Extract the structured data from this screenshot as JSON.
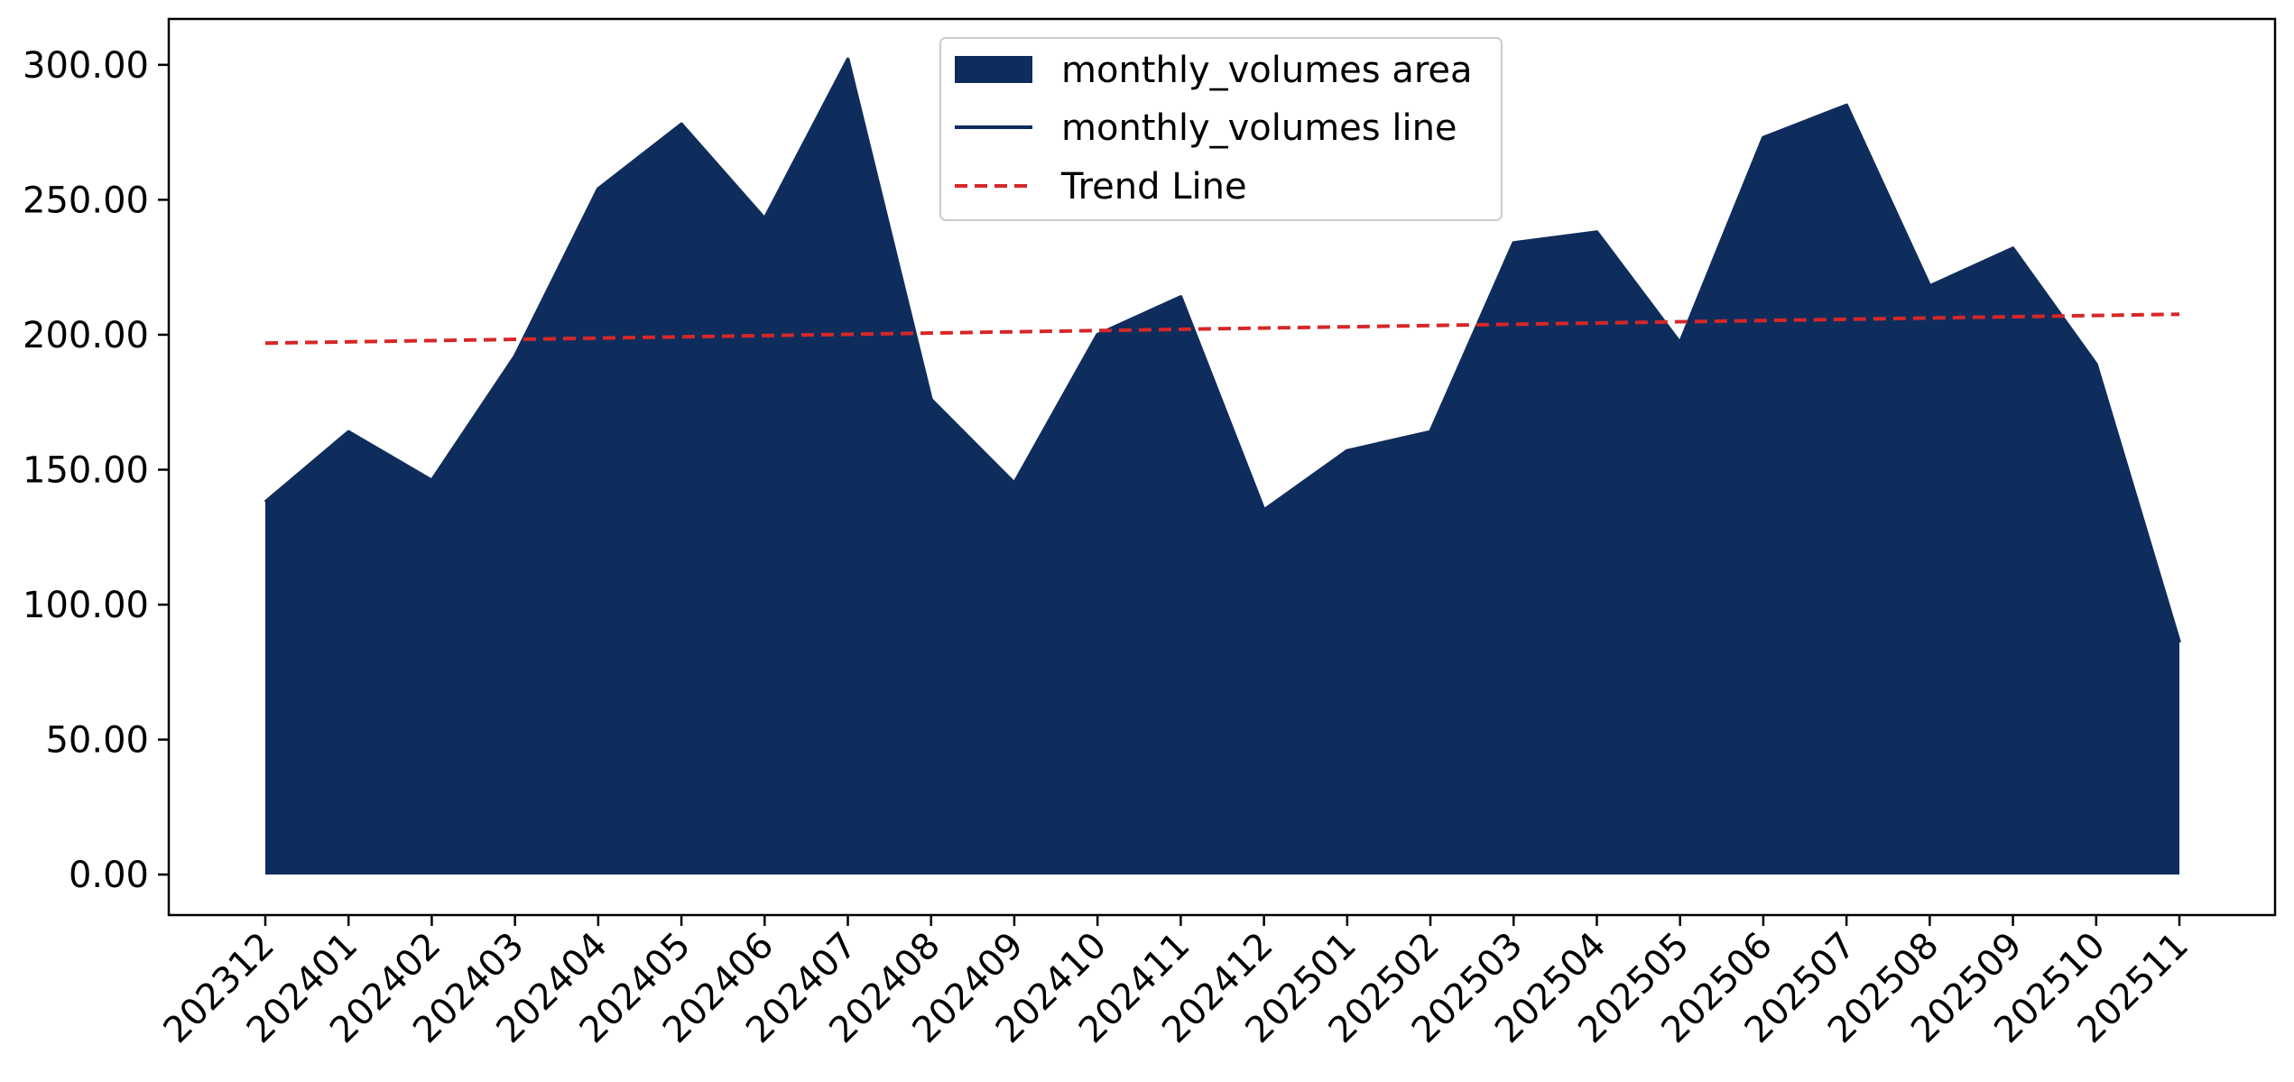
{
  "chart_data": {
    "type": "area",
    "title": "",
    "xlabel": "",
    "ylabel": "",
    "x": [
      "202312",
      "202401",
      "202402",
      "202403",
      "202404",
      "202405",
      "202406",
      "202407",
      "202408",
      "202409",
      "202410",
      "202411",
      "202412",
      "202501",
      "202502",
      "202503",
      "202504",
      "202505",
      "202506",
      "202507",
      "202508",
      "202509",
      "202510",
      "202511"
    ],
    "series": [
      {
        "name": "monthly_volumes area",
        "kind": "area",
        "color": "#0f2d5c",
        "values": [
          138,
          164,
          146,
          192,
          254,
          278,
          243,
          302,
          176,
          145,
          200,
          214,
          135,
          157,
          164,
          234,
          238,
          197,
          273,
          285,
          218,
          232,
          189,
          86
        ]
      },
      {
        "name": "monthly_volumes line",
        "kind": "line",
        "color": "#0f2d5c",
        "values": [
          138,
          164,
          146,
          192,
          254,
          278,
          243,
          302,
          176,
          145,
          200,
          214,
          135,
          157,
          164,
          234,
          238,
          197,
          273,
          285,
          218,
          232,
          189,
          86
        ]
      },
      {
        "name": "Trend Line",
        "kind": "trend",
        "color": "#d62728",
        "style": "dashed",
        "start": 196.9,
        "end": 207.6
      }
    ],
    "y_ticks": [
      "0.00",
      "50.00",
      "100.00",
      "150.00",
      "200.00",
      "250.00",
      "300.00"
    ],
    "y_tick_values": [
      0,
      50,
      100,
      150,
      200,
      250,
      300
    ],
    "ylim": [
      -15,
      317
    ],
    "grid": false,
    "legend_position": "upper-center"
  }
}
